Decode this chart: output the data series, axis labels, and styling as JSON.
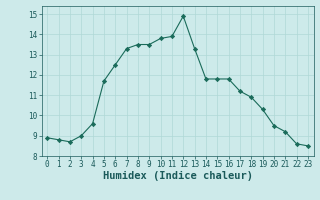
{
  "x": [
    0,
    1,
    2,
    3,
    4,
    5,
    6,
    7,
    8,
    9,
    10,
    11,
    12,
    13,
    14,
    15,
    16,
    17,
    18,
    19,
    20,
    21,
    22,
    23
  ],
  "y": [
    8.9,
    8.8,
    8.7,
    9.0,
    9.6,
    11.7,
    12.5,
    13.3,
    13.5,
    13.5,
    13.8,
    13.9,
    14.9,
    13.3,
    11.8,
    11.8,
    11.8,
    11.2,
    10.9,
    10.3,
    9.5,
    9.2,
    8.6,
    8.5
  ],
  "line_color": "#1a6b5a",
  "marker": "D",
  "marker_size": 2.2,
  "bg_color": "#cdeaea",
  "grid_color": "#b0d8d6",
  "xlabel": "Humidex (Indice chaleur)",
  "ylim": [
    8,
    15.4
  ],
  "xlim": [
    -0.5,
    23.5
  ],
  "yticks": [
    8,
    9,
    10,
    11,
    12,
    13,
    14,
    15
  ],
  "xticks": [
    0,
    1,
    2,
    3,
    4,
    5,
    6,
    7,
    8,
    9,
    10,
    11,
    12,
    13,
    14,
    15,
    16,
    17,
    18,
    19,
    20,
    21,
    22,
    23
  ],
  "tick_fontsize": 5.5,
  "xlabel_fontsize": 7.5,
  "label_color": "#1a5a5a"
}
